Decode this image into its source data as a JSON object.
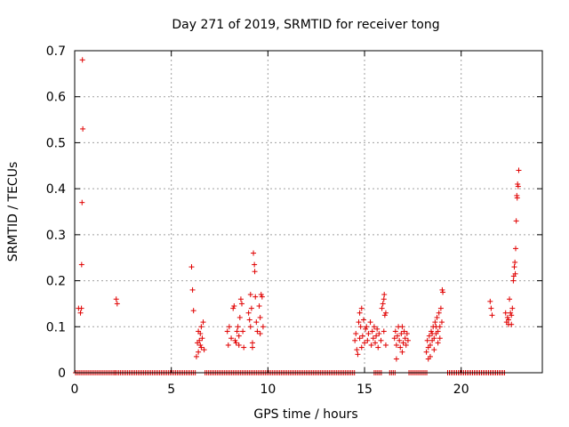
{
  "chart_data": {
    "type": "scatter",
    "title": "Day 271 of 2019, SRMTID for receiver tong",
    "xlabel": "GPS time / hours",
    "ylabel": "SRMTID / TECUs",
    "xlim": [
      0,
      24.2
    ],
    "ylim": [
      0,
      0.7
    ],
    "xticks": [
      0,
      5,
      10,
      15,
      20
    ],
    "xtick_labels": [
      "0",
      "5",
      "10",
      "15",
      "20"
    ],
    "yticks": [
      0,
      0.1,
      0.2,
      0.3,
      0.4,
      0.5,
      0.6,
      0.7
    ],
    "ytick_labels": [
      "0",
      "0.1",
      "0.2",
      "0.3",
      "0.4",
      "0.5",
      "0.6",
      "0.7"
    ],
    "grid": true,
    "marker": "+",
    "marker_color": "#e00000",
    "zero_runs": [
      [
        0.05,
        2.1
      ],
      [
        2.1,
        6.3
      ],
      [
        6.75,
        14.5
      ],
      [
        15.5,
        15.9
      ],
      [
        16.3,
        16.6
      ],
      [
        17.3,
        18.3
      ],
      [
        19.3,
        22.3
      ]
    ],
    "series": [
      {
        "values": [
          [
            0.2,
            0.14
          ],
          [
            0.3,
            0.13
          ],
          [
            0.35,
            0.14
          ],
          [
            0.4,
            0.68
          ],
          [
            0.42,
            0.53
          ],
          [
            0.38,
            0.37
          ],
          [
            0.36,
            0.235
          ],
          [
            2.15,
            0.16
          ],
          [
            2.2,
            0.15
          ],
          [
            6.05,
            0.23
          ],
          [
            6.1,
            0.18
          ],
          [
            6.15,
            0.135
          ],
          [
            6.3,
            0.035
          ],
          [
            6.35,
            0.065
          ],
          [
            6.4,
            0.09
          ],
          [
            6.45,
            0.07
          ],
          [
            6.5,
            0.06
          ],
          [
            6.55,
            0.1
          ],
          [
            6.6,
            0.075
          ],
          [
            6.65,
            0.11
          ],
          [
            6.7,
            0.05
          ],
          [
            6.4,
            0.045
          ],
          [
            6.55,
            0.055
          ],
          [
            6.5,
            0.085
          ],
          [
            7.9,
            0.09
          ],
          [
            7.95,
            0.06
          ],
          [
            8.0,
            0.1
          ],
          [
            8.1,
            0.075
          ],
          [
            8.2,
            0.14
          ],
          [
            8.25,
            0.145
          ],
          [
            8.3,
            0.07
          ],
          [
            8.4,
            0.09
          ],
          [
            8.45,
            0.1
          ],
          [
            8.5,
            0.06
          ],
          [
            8.55,
            0.12
          ],
          [
            8.6,
            0.16
          ],
          [
            8.65,
            0.15
          ],
          [
            8.7,
            0.09
          ],
          [
            8.75,
            0.055
          ],
          [
            8.5,
            0.08
          ],
          [
            8.35,
            0.065
          ],
          [
            9.0,
            0.13
          ],
          [
            9.05,
            0.115
          ],
          [
            9.1,
            0.17
          ],
          [
            9.15,
            0.14
          ],
          [
            9.2,
            0.065
          ],
          [
            9.25,
            0.26
          ],
          [
            9.3,
            0.235
          ],
          [
            9.32,
            0.22
          ],
          [
            9.35,
            0.165
          ],
          [
            9.4,
            0.11
          ],
          [
            9.45,
            0.09
          ],
          [
            9.2,
            0.055
          ],
          [
            9.1,
            0.1
          ],
          [
            9.55,
            0.145
          ],
          [
            9.6,
            0.12
          ],
          [
            9.65,
            0.17
          ],
          [
            9.7,
            0.165
          ],
          [
            9.75,
            0.1
          ],
          [
            9.6,
            0.085
          ],
          [
            14.5,
            0.07
          ],
          [
            14.55,
            0.085
          ],
          [
            14.6,
            0.05
          ],
          [
            14.7,
            0.11
          ],
          [
            14.75,
            0.13
          ],
          [
            14.8,
            0.1
          ],
          [
            14.85,
            0.14
          ],
          [
            14.9,
            0.08
          ],
          [
            14.95,
            0.115
          ],
          [
            15.0,
            0.065
          ],
          [
            15.05,
            0.095
          ],
          [
            14.65,
            0.04
          ],
          [
            14.75,
            0.075
          ],
          [
            14.85,
            0.055
          ],
          [
            15.1,
            0.1
          ],
          [
            15.15,
            0.07
          ],
          [
            15.2,
            0.085
          ],
          [
            15.3,
            0.11
          ],
          [
            15.35,
            0.06
          ],
          [
            15.4,
            0.09
          ],
          [
            15.45,
            0.075
          ],
          [
            15.5,
            0.1
          ],
          [
            15.55,
            0.065
          ],
          [
            15.6,
            0.08
          ],
          [
            15.65,
            0.095
          ],
          [
            15.7,
            0.055
          ],
          [
            15.75,
            0.085
          ],
          [
            15.85,
            0.07
          ],
          [
            15.9,
            0.14
          ],
          [
            15.95,
            0.15
          ],
          [
            16.0,
            0.16
          ],
          [
            16.02,
            0.17
          ],
          [
            16.05,
            0.125
          ],
          [
            16.1,
            0.13
          ],
          [
            16.0,
            0.09
          ],
          [
            16.1,
            0.06
          ],
          [
            16.55,
            0.075
          ],
          [
            16.6,
            0.09
          ],
          [
            16.65,
            0.06
          ],
          [
            16.7,
            0.08
          ],
          [
            16.75,
            0.1
          ],
          [
            16.8,
            0.07
          ],
          [
            16.85,
            0.055
          ],
          [
            16.9,
            0.085
          ],
          [
            16.95,
            0.1
          ],
          [
            17.0,
            0.065
          ],
          [
            17.05,
            0.09
          ],
          [
            17.1,
            0.075
          ],
          [
            17.15,
            0.06
          ],
          [
            17.2,
            0.085
          ],
          [
            17.25,
            0.07
          ],
          [
            16.65,
            0.03
          ],
          [
            16.95,
            0.045
          ],
          [
            18.2,
            0.045
          ],
          [
            18.25,
            0.07
          ],
          [
            18.3,
            0.055
          ],
          [
            18.35,
            0.08
          ],
          [
            18.4,
            0.06
          ],
          [
            18.45,
            0.09
          ],
          [
            18.5,
            0.07
          ],
          [
            18.55,
            0.1
          ],
          [
            18.6,
            0.075
          ],
          [
            18.65,
            0.11
          ],
          [
            18.7,
            0.085
          ],
          [
            18.75,
            0.12
          ],
          [
            18.8,
            0.09
          ],
          [
            18.85,
            0.13
          ],
          [
            18.9,
            0.1
          ],
          [
            18.95,
            0.14
          ],
          [
            19.0,
            0.11
          ],
          [
            19.02,
            0.18
          ],
          [
            19.05,
            0.175
          ],
          [
            18.4,
            0.035
          ],
          [
            18.6,
            0.05
          ],
          [
            18.8,
            0.065
          ],
          [
            18.5,
            0.085
          ],
          [
            18.7,
            0.1
          ],
          [
            18.9,
            0.075
          ],
          [
            18.3,
            0.03
          ],
          [
            21.5,
            0.155
          ],
          [
            21.55,
            0.14
          ],
          [
            21.6,
            0.125
          ],
          [
            22.3,
            0.13
          ],
          [
            22.35,
            0.11
          ],
          [
            22.4,
            0.12
          ],
          [
            22.45,
            0.105
          ],
          [
            22.5,
            0.16
          ],
          [
            22.55,
            0.13
          ],
          [
            22.6,
            0.125
          ],
          [
            22.65,
            0.14
          ],
          [
            22.7,
            0.2
          ],
          [
            22.72,
            0.21
          ],
          [
            22.75,
            0.23
          ],
          [
            22.78,
            0.24
          ],
          [
            22.8,
            0.215
          ],
          [
            22.82,
            0.27
          ],
          [
            22.85,
            0.33
          ],
          [
            22.88,
            0.385
          ],
          [
            22.9,
            0.38
          ],
          [
            22.92,
            0.41
          ],
          [
            22.95,
            0.405
          ],
          [
            22.98,
            0.44
          ],
          [
            22.45,
            0.115
          ],
          [
            22.6,
            0.105
          ]
        ]
      }
    ]
  }
}
